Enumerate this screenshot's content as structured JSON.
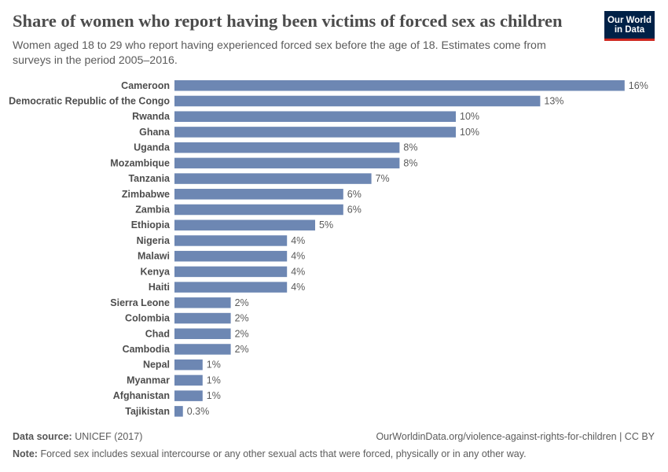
{
  "header": {
    "title": "Share of women who report having been victims of forced sex as children",
    "subtitle": "Women aged 18 to 29 who report having experienced forced sex before the age of 18. Estimates come from surveys in the period 2005–2016.",
    "logo_line1": "Our World",
    "logo_line2": "in Data",
    "logo_bg": "#002147",
    "logo_accent": "#ce261e"
  },
  "footer": {
    "source_label": "Data source:",
    "source_text": "UNICEF (2017)",
    "url_text": "OurWorldinData.org/violence-against-rights-for-children | CC BY",
    "note_label": "Note:",
    "note_text": "Forced sex includes sexual intercourse or any other sexual acts that were forced, physically or in any other way."
  },
  "chart_data": {
    "type": "bar",
    "orientation": "horizontal",
    "bar_color": "#6d87b3",
    "categories": [
      "Cameroon",
      "Democratic Republic of the Congo",
      "Rwanda",
      "Ghana",
      "Uganda",
      "Mozambique",
      "Tanzania",
      "Zimbabwe",
      "Zambia",
      "Ethiopia",
      "Nigeria",
      "Malawi",
      "Kenya",
      "Haiti",
      "Sierra Leone",
      "Colombia",
      "Chad",
      "Cambodia",
      "Nepal",
      "Myanmar",
      "Afghanistan",
      "Tajikistan"
    ],
    "values": [
      16,
      13,
      10,
      10,
      8,
      8,
      7,
      6,
      6,
      5,
      4,
      4,
      4,
      4,
      2,
      2,
      2,
      2,
      1,
      1,
      1,
      0.3
    ],
    "value_labels": [
      "16%",
      "13%",
      "10%",
      "10%",
      "8%",
      "8%",
      "7%",
      "6%",
      "6%",
      "5%",
      "4%",
      "4%",
      "4%",
      "4%",
      "2%",
      "2%",
      "2%",
      "2%",
      "1%",
      "1%",
      "1%",
      "0.3%"
    ],
    "unit": "%",
    "grid": false,
    "legend": "none"
  }
}
